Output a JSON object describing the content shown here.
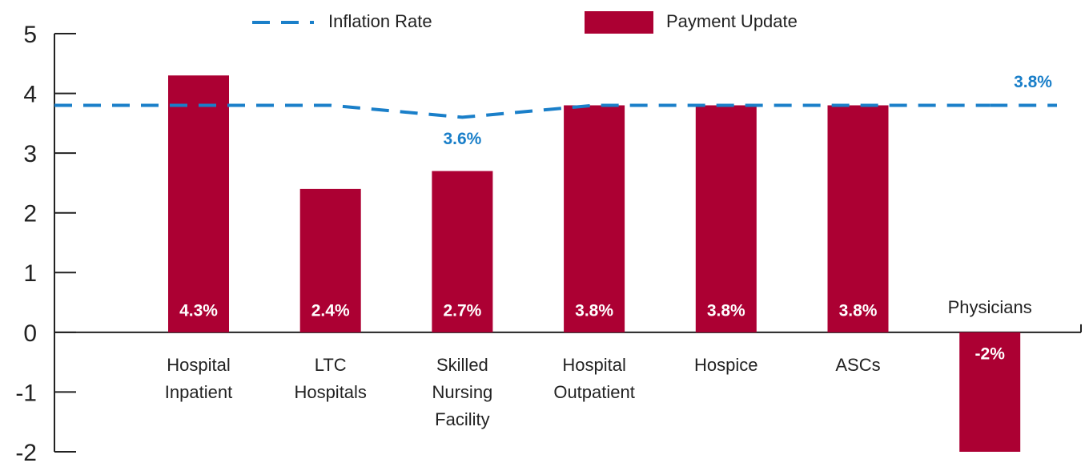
{
  "chart_data": {
    "type": "bar",
    "categories": [
      [
        "Hospital",
        "Inpatient"
      ],
      [
        "LTC",
        "Hospitals"
      ],
      [
        "Skilled",
        "Nursing",
        "Facility"
      ],
      [
        "Hospital",
        "Outpatient"
      ],
      [
        "Hospice"
      ],
      [
        "ASCs"
      ],
      [
        "Physicians"
      ]
    ],
    "series": [
      {
        "name": "Payment Update",
        "type": "bar",
        "color": "#ac0033",
        "values": [
          4.3,
          2.4,
          2.7,
          3.8,
          3.8,
          3.8,
          -2
        ],
        "value_labels": [
          "4.3%",
          "2.4%",
          "2.7%",
          "3.8%",
          "3.8%",
          "3.8%",
          "-2%"
        ]
      },
      {
        "name": "Inflation Rate",
        "type": "line",
        "color": "#1a7fc9",
        "values": [
          3.8,
          3.8,
          3.6,
          3.8,
          3.8,
          3.8,
          3.8
        ],
        "value_labels": [
          null,
          null,
          "3.6%",
          null,
          null,
          null,
          "3.8%"
        ]
      }
    ],
    "ylim": [
      -2,
      5
    ],
    "yticks": [
      -2,
      -1,
      0,
      1,
      2,
      3,
      4,
      5
    ],
    "grid": false,
    "legend": "top"
  }
}
